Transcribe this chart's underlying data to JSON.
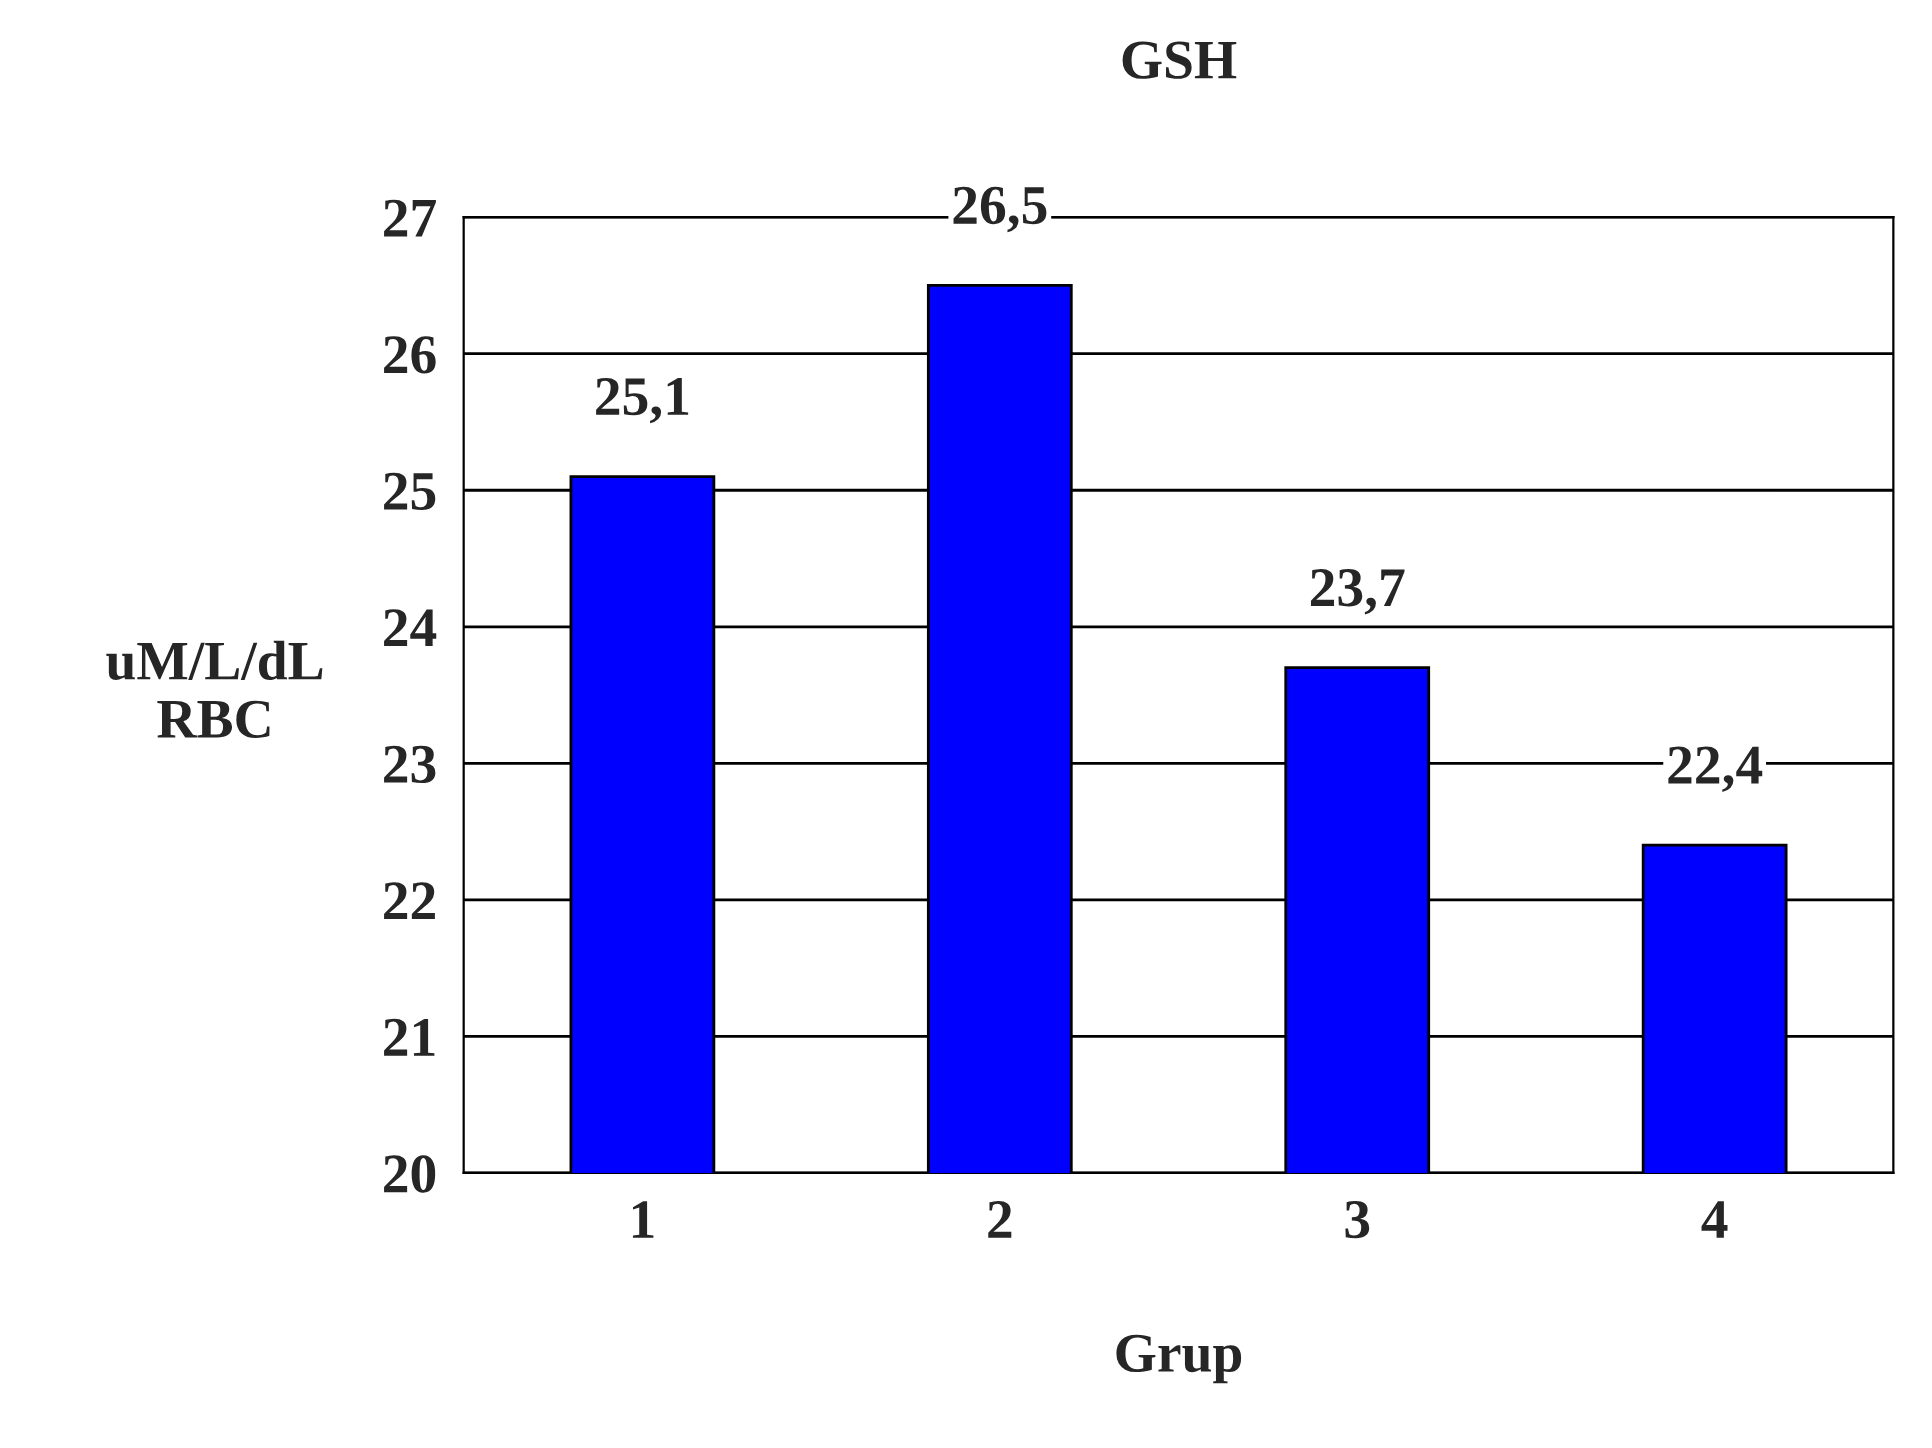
{
  "chart_data": {
    "type": "bar",
    "title": "GSH",
    "xlabel": "Grup",
    "ylabel": "uM/L/dL\nRBC",
    "categories": [
      "1",
      "2",
      "3",
      "4"
    ],
    "values": [
      25.1,
      26.5,
      23.7,
      22.4
    ],
    "value_labels": [
      "25,1",
      "26,5",
      "23,7",
      "22,4"
    ],
    "color": "#0000ff",
    "ylim": [
      20,
      27
    ],
    "yticks": [
      20,
      21,
      22,
      23,
      24,
      25,
      26,
      27
    ],
    "grid": "y"
  }
}
